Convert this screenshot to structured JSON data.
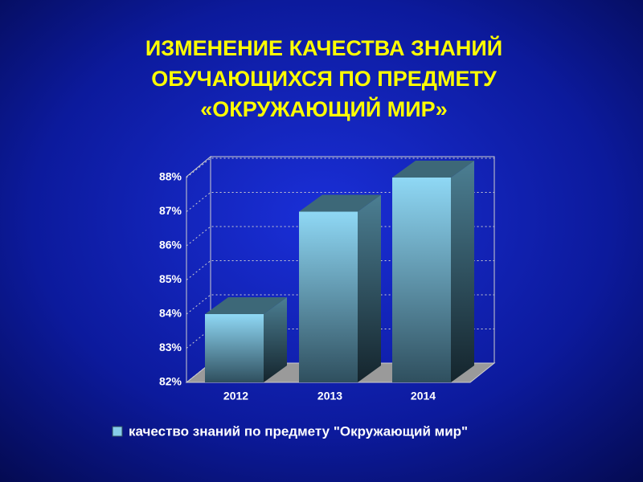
{
  "chart_data": {
    "type": "bar3d",
    "title": [
      "ИЗМЕНЕНИЕ КАЧЕСТВА ЗНАНИЙ",
      "ОБУЧАЮЩИХСЯ ПО ПРЕДМЕТУ",
      "«ОКРУЖАЮЩИЙ МИР»"
    ],
    "categories": [
      "2012",
      "2013",
      "2014"
    ],
    "series": [
      {
        "name": "качество знаний по предмету \"Окружающий мир\"",
        "color": "#86cdea",
        "values": [
          84,
          87,
          88
        ]
      }
    ],
    "ylim": [
      82,
      88
    ],
    "yticks": [
      {
        "value": 82,
        "label": "82%"
      },
      {
        "value": 83,
        "label": "83%"
      },
      {
        "value": 84,
        "label": "84%"
      },
      {
        "value": 85,
        "label": "85%"
      },
      {
        "value": 86,
        "label": "86%"
      },
      {
        "value": 87,
        "label": "87%"
      },
      {
        "value": 88,
        "label": "88%"
      }
    ],
    "grid": true,
    "legend": "bottom"
  }
}
